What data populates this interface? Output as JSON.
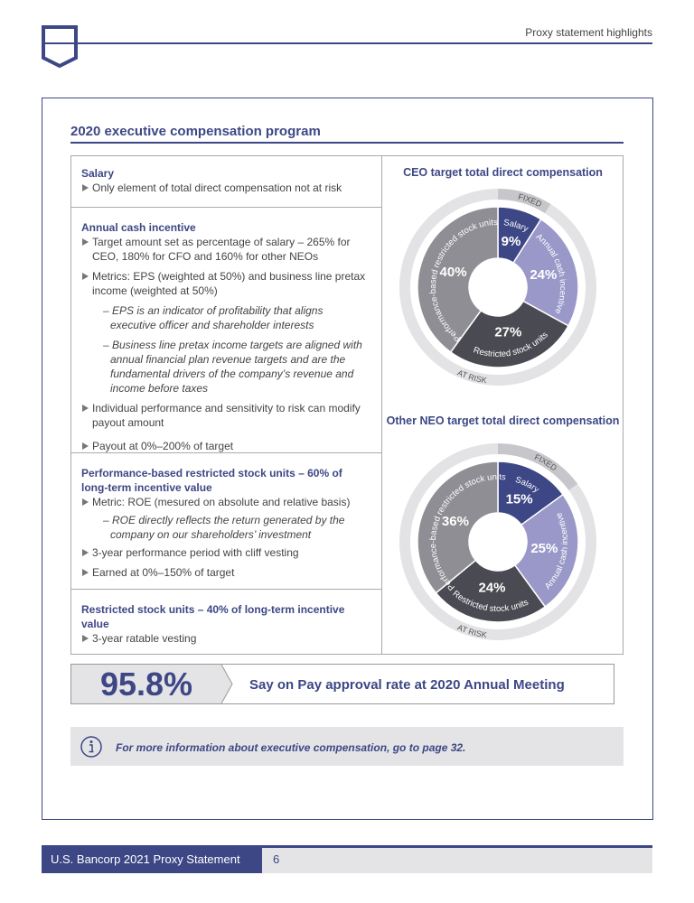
{
  "header": {
    "section": "Proxy statement highlights"
  },
  "title": "2020 executive compensation program",
  "sections": [
    {
      "heading": "Salary",
      "items": [
        {
          "text": "Only element of total direct compensation not at risk"
        }
      ]
    },
    {
      "heading": "Annual cash incentive",
      "items": [
        {
          "text": "Target amount set as percentage of salary – 265% for CEO, 180% for CFO and 160% for other NEOs"
        },
        {
          "text": "Metrics: EPS (weighted at 50%) and business line pretax income (weighted at 50%)",
          "subitems": [
            "– EPS is an indicator of profitability that aligns executive officer and shareholder interests",
            "– Business line pretax income targets are aligned with annual financial plan revenue targets and are the fundamental drivers of the company’s revenue and income before taxes"
          ]
        },
        {
          "text": "Individual performance and sensitivity to risk can modify payout amount"
        },
        {
          "text": "Payout at 0%–200% of target"
        }
      ]
    },
    {
      "heading": "Performance-based restricted stock units – 60% of long-term incentive value",
      "items": [
        {
          "text": "Metric: ROE (mesured on absolute and relative basis)",
          "subitems": [
            "– ROE directly reflects the return generated by the company on our shareholders’ investment"
          ]
        },
        {
          "text": "3-year performance period with cliff vesting"
        },
        {
          "text": "Earned at 0%–150% of target"
        }
      ]
    },
    {
      "heading": "Restricted stock units – 40% of long-term incentive value",
      "items": [
        {
          "text": "3-year ratable vesting"
        }
      ]
    }
  ],
  "chart_data": [
    {
      "type": "donut",
      "title": "CEO target total direct compensation",
      "categories": [
        "Salary",
        "Annual cash incentive",
        "Restricted stock units",
        "Performance-based restricted stock units"
      ],
      "values": [
        9,
        24,
        27,
        40
      ],
      "value_labels": [
        "9%",
        "24%",
        "27%",
        "40%"
      ],
      "colors": [
        "#3d4785",
        "#9a98c8",
        "#4a4a52",
        "#8e8e94"
      ],
      "ring_labels": [
        "FIXED",
        "AT RISK"
      ],
      "ring_colors": [
        "#c6c6cb",
        "#e3e3e6"
      ]
    },
    {
      "type": "donut",
      "title": "Other NEO target total direct compensation",
      "categories": [
        "Salary",
        "Annual cash incentive",
        "Restricted stock units",
        "Performance-based restricted stock units"
      ],
      "values": [
        15,
        25,
        24,
        36
      ],
      "value_labels": [
        "15%",
        "25%",
        "24%",
        "36%"
      ],
      "colors": [
        "#3d4785",
        "#9a98c8",
        "#4a4a52",
        "#8e8e94"
      ],
      "ring_labels": [
        "FIXED",
        "AT RISK"
      ],
      "ring_colors": [
        "#c6c6cb",
        "#e3e3e6"
      ]
    }
  ],
  "say_on_pay": {
    "rate": "95.8%",
    "text": "Say on Pay approval rate at 2020 Annual Meeting"
  },
  "info": "For more information about executive compensation, go to page 32.",
  "footer": {
    "document": "U.S. Bancorp 2021 Proxy Statement",
    "page": "6"
  }
}
